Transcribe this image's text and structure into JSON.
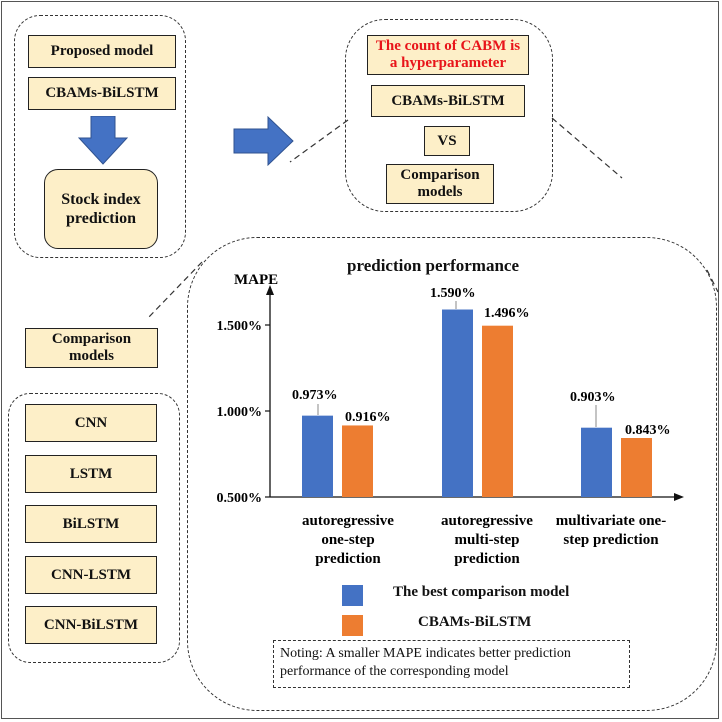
{
  "proposed": {
    "label": "Proposed model",
    "model": "CBAMs-BiLSTM",
    "task": "Stock index prediction"
  },
  "hyper": {
    "note": "The count of CABM is a hyperparameter",
    "model": "CBAMs-BiLSTM",
    "vs": "VS",
    "comparison": "Comparison models"
  },
  "comparison": {
    "title": "Comparison models",
    "models": [
      "CNN",
      "LSTM",
      "BiLSTM",
      "CNN-LSTM",
      "CNN-BiLSTM"
    ]
  },
  "colors": {
    "best_comparison": "#4472c4",
    "proposed": "#ed7d31",
    "box_fill": "#fdefc8",
    "arrow": "#4472c4",
    "highlight_text": "#e8141a"
  },
  "legend": {
    "items": [
      {
        "label": "The best comparison model",
        "color": "#4472c4"
      },
      {
        "label": "CBAMs-BiLSTM",
        "color": "#ed7d31"
      }
    ]
  },
  "note": "Noting: A smaller MAPE indicates better prediction performance of the corresponding model",
  "chart_data": {
    "type": "bar",
    "title": "prediction performance",
    "ylabel": "MAPE",
    "categories": [
      "autoregressive one-step prediction",
      "autoregressive multi-step prediction",
      "multivariate one-step prediction"
    ],
    "category_lines": [
      [
        "autoregressive",
        "one-step",
        "prediction"
      ],
      [
        "autoregressive",
        "multi-step",
        "prediction"
      ],
      [
        "multivariate one-",
        "step prediction"
      ]
    ],
    "series": [
      {
        "name": "The best comparison model",
        "values": [
          0.973,
          1.59,
          0.903
        ],
        "labels": [
          "0.973%",
          "1.590%",
          "0.903%"
        ],
        "color": "#4472c4"
      },
      {
        "name": "CBAMs-BiLSTM",
        "values": [
          0.916,
          1.496,
          0.843
        ],
        "labels": [
          "0.916%",
          "1.496%",
          "0.843%"
        ],
        "color": "#ed7d31"
      }
    ],
    "yticks": [
      0.5,
      1.0,
      1.5
    ],
    "ytick_labels": [
      "0.500%",
      "1.000%",
      "1.500%"
    ],
    "ylim": [
      0.5,
      1.75
    ],
    "grid": false
  }
}
